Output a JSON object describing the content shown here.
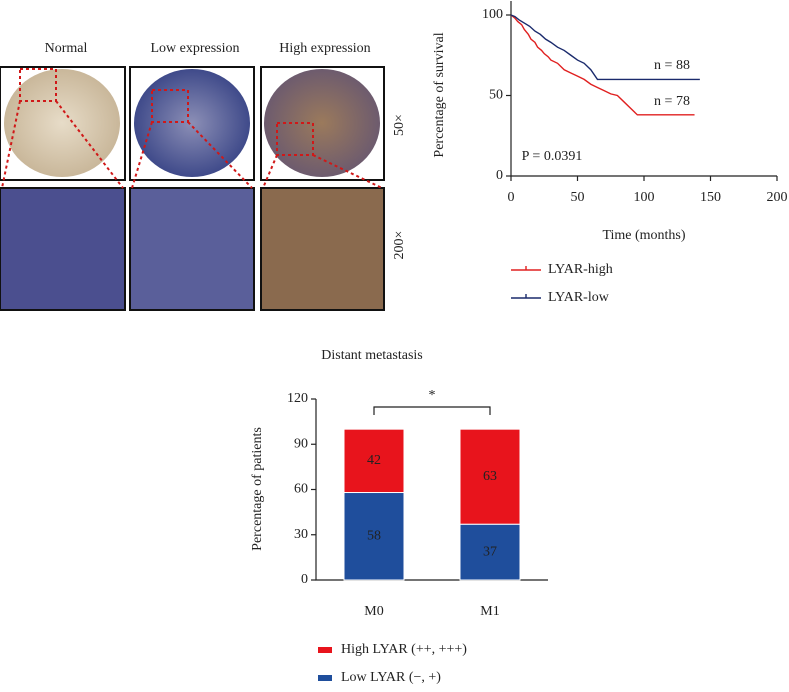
{
  "image_panel": {
    "columns": [
      "Normal",
      "Low expression",
      "High expression"
    ],
    "rows": [
      "50×",
      "200×"
    ]
  },
  "chart_data": [
    {
      "type": "line",
      "x_label": "Time (months)",
      "y_label": "Percentage of survival",
      "annotations": [
        "n = 88",
        "n = 78",
        "P = 0.0391"
      ],
      "xlim": [
        0,
        200
      ],
      "xticks": [
        0,
        50,
        100,
        150,
        200
      ],
      "ylim": [
        0,
        100
      ],
      "yticks": [
        0,
        50,
        100
      ],
      "series": [
        {
          "name": "LYAR-high",
          "color": "#e02020",
          "x": [
            0,
            3,
            5,
            8,
            10,
            13,
            15,
            18,
            20,
            23,
            25,
            28,
            30,
            35,
            40,
            45,
            50,
            55,
            60,
            65,
            70,
            75,
            80,
            85,
            90,
            95,
            100,
            110,
            120,
            130,
            138
          ],
          "values": [
            100,
            98,
            96,
            94,
            91,
            88,
            85,
            83,
            80,
            78,
            76,
            74,
            72,
            70,
            66,
            64,
            62,
            60,
            57,
            55,
            53,
            51,
            50,
            46,
            42,
            38,
            38,
            38,
            38,
            38,
            38
          ]
        },
        {
          "name": "LYAR-low",
          "color": "#1a2a6c",
          "x": [
            0,
            3,
            6,
            10,
            14,
            18,
            22,
            26,
            30,
            35,
            40,
            45,
            50,
            55,
            60,
            65,
            70,
            80,
            90,
            100,
            110,
            120,
            130,
            142
          ],
          "values": [
            100,
            99,
            97,
            95,
            93,
            90,
            88,
            85,
            83,
            80,
            78,
            75,
            72,
            70,
            66,
            60,
            60,
            60,
            60,
            60,
            60,
            60,
            60,
            60
          ]
        }
      ]
    },
    {
      "type": "bar",
      "stacked": true,
      "title": "Distant metastasis",
      "y_label": "Percentage of patients",
      "significance": "*",
      "categories": [
        "M0",
        "M1"
      ],
      "ylim": [
        0,
        120
      ],
      "yticks": [
        0,
        30,
        60,
        90,
        120
      ],
      "series": [
        {
          "name": "Low LYAR (−, +)",
          "color": "#1f4e9c",
          "values": [
            58,
            37
          ]
        },
        {
          "name": "High LYAR (++, +++)",
          "color": "#e8141c",
          "values": [
            42,
            63
          ]
        }
      ]
    }
  ]
}
